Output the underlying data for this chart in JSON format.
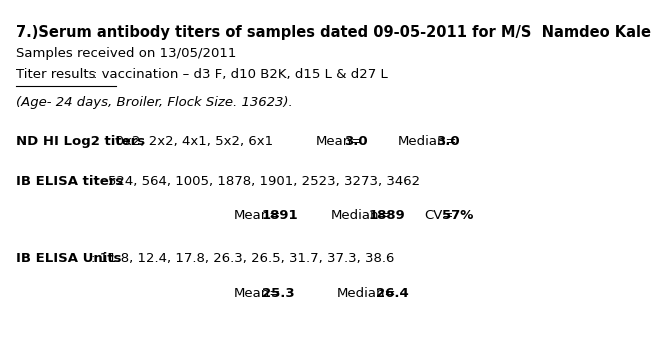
{
  "title_bold": "7.)Serum antibody titers of samples dated 09-05-2011 for M/S  Namdeo Kale",
  "line2": "Samples received on 13/05/2011",
  "line3_underline": "Titer results",
  "line3_rest": ": vaccination – d3 F, d10 B2K, d15 L & d27 L",
  "line4": "(Age- 24 days, Broiler, Flock Size. 13623).",
  "nd_label_bold": "ND HI Log2 titers",
  "nd_label_rest": ": 0x2, 2x2, 4x1, 5x2, 6x1",
  "nd_mean_label": "Mean=",
  "nd_mean_val": "3.0",
  "nd_median_label": "Median=",
  "nd_median_val": "3.0",
  "ib_titer_label_bold": "IB ELISA titers",
  "ib_titer_rest": ":  524, 564, 1005, 1878, 1901, 2523, 3273, 3462",
  "ib_titer_mean_label": "Mean=",
  "ib_titer_mean_val": "1891",
  "ib_titer_median_label": "Median=",
  "ib_titer_median_val": "1889",
  "ib_titer_cv_label": "CV=",
  "ib_titer_cv_val": "57%",
  "ib_units_label_bold": "IB ELISA Units",
  "ib_units_rest": ": 11.8, 12.4, 17.8, 26.3, 26.5, 31.7, 37.3, 38.6",
  "ib_units_mean_label": "Mean=",
  "ib_units_mean_val": "25.3",
  "ib_units_median_label": "Median=",
  "ib_units_median_val": "26.4",
  "bg_color": "#ffffff",
  "text_color": "#000000",
  "font_size": 9.5,
  "title_font_size": 10.5
}
